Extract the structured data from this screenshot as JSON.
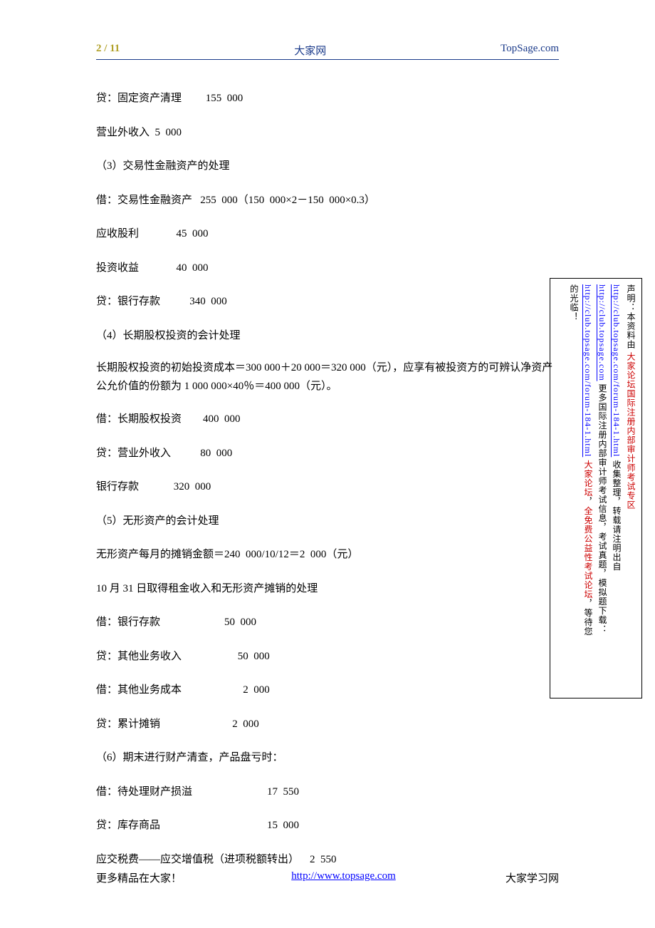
{
  "header": {
    "page_num": "2 / 11",
    "site_name_cn": "大家网",
    "site_domain": "TopSage.com"
  },
  "colors": {
    "header_left": "#b0a028",
    "header_blue": "#1a3a8a",
    "link_blue": "#0000ff",
    "red": "#cc0000",
    "text": "#000000",
    "bg": "#ffffff"
  },
  "lines": {
    "l1": "贷：固定资产清理         155  000",
    "l2": "营业外收入  5  000",
    "l3": "（3）交易性金融资产的处理",
    "l4": "借：交易性金融资产   255  000（150  000×2－150  000×0.3）",
    "l5": "应收股利              45  000",
    "l6": "投资收益              40  000",
    "l7": "贷：银行存款           340  000",
    "l8": "（4）长期股权投资的会计处理",
    "l9": "长期股权投资的初始投资成本＝300  000＋20  000＝320  000（元），应享有被投资方的可辨认净资产公允价值的份额为 1  000  000×40％＝400  000（元）。",
    "l10": "借：长期股权投资        400  000",
    "l11": "贷：营业外收入           80  000",
    "l12": "银行存款             320  000",
    "l13": "（5）无形资产的会计处理",
    "l14": "无形资产每月的摊销金额＝240  000/10/12＝2  000（元）",
    "l15": "10 月 31 日取得租金收入和无形资产摊销的处理",
    "l16": "借：银行存款                        50  000",
    "l17": "贷：其他业务收入                     50  000",
    "l18": "借：其他业务成本                       2  000",
    "l19": "贷：累计摊销                           2  000",
    "l20": "（6）期末进行财产清查，产品盘亏时：",
    "l21": "借：待处理财产损溢                            17  550",
    "l22": "贷：库存商品                                        15  000",
    "l23": "应交税费——应交增值税（进项税额转出）    2  550"
  },
  "footer": {
    "left": "更多精品在大家！",
    "link": "http://www.topsage.com",
    "right": "大家学习网"
  },
  "sidebar": {
    "s1a": "声明：本资料由 ",
    "s1b": "大家论坛国际注册内部审计师考试专区",
    "s2a": "http://club.topsage.com/forum-184-1.html",
    "s2b": " 收集整理，转载请注明出自",
    "s3a": "http://club.topsage.com",
    "s3b": " 更多国际注册内部审计师考试信息，考试真题，模拟题下载：",
    "s4a": "http://club.topsage.com/forum-184-1.html",
    "s4b": "  ",
    "s4c": "大家论坛",
    "s4d": "，",
    "s4e": "全免费公益性考试论坛",
    "s4f": "，等待您",
    "s5": "的光临！"
  }
}
